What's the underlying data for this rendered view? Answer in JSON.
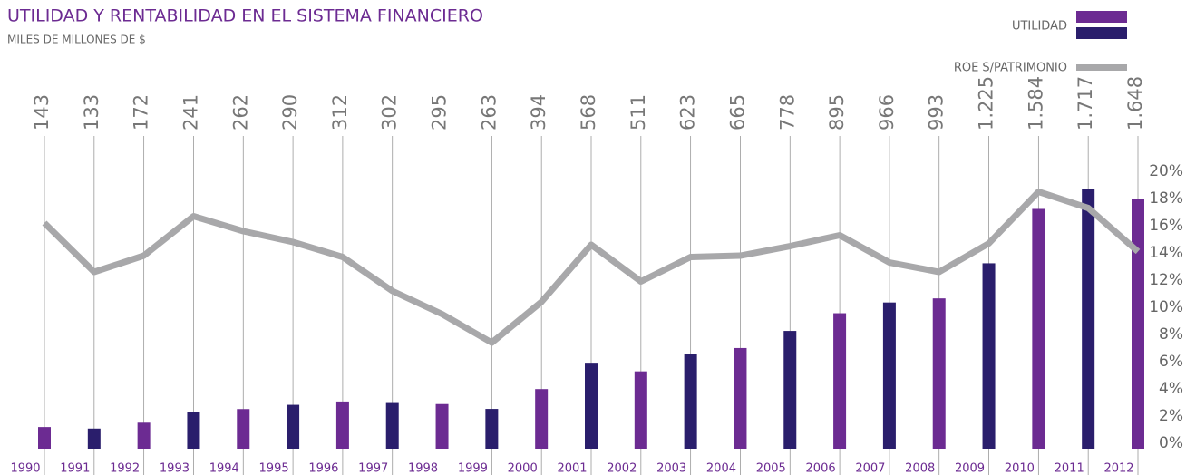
{
  "chart_data": {
    "type": "bar_line",
    "title": "UTILIDAD Y RENTABILIDAD EN EL SISTEMA FINANCIERO",
    "subtitle": "MILES DE MILLONES DE $",
    "categories": [
      "1990",
      "1991",
      "1992",
      "1993",
      "1994",
      "1995",
      "1996",
      "1997",
      "1998",
      "1999",
      "2000",
      "2001",
      "2002",
      "2003",
      "2004",
      "2005",
      "2006",
      "2007",
      "2008",
      "2009",
      "2010",
      "2011",
      "2012"
    ],
    "series": [
      {
        "name": "UTILIDAD",
        "type": "bar",
        "color": [
          "#6c2b92",
          "#2a1e6c"
        ],
        "values": [
          143,
          133,
          172,
          241,
          262,
          290,
          312,
          302,
          295,
          263,
          394,
          568,
          511,
          623,
          665,
          778,
          895,
          966,
          993,
          1225,
          1584,
          1717,
          1648
        ],
        "value_labels": [
          "143",
          "133",
          "172",
          "241",
          "262",
          "290",
          "312",
          "302",
          "295",
          "263",
          "394",
          "568",
          "511",
          "623",
          "665",
          "778",
          "895",
          "966",
          "993",
          "1.225",
          "1.584",
          "1.717",
          "1.648"
        ]
      },
      {
        "name": "ROE S/PATRIMONIO",
        "type": "line",
        "axis": "y2",
        "color": "#a8a8aa",
        "values": [
          16.2,
          12.6,
          13.8,
          16.7,
          15.6,
          14.8,
          13.7,
          11.2,
          9.5,
          7.4,
          10.4,
          14.6,
          11.9,
          13.7,
          13.8,
          14.5,
          15.3,
          13.3,
          12.6,
          14.7,
          18.5,
          17.3,
          14.1
        ]
      }
    ],
    "ylim": [
      0,
      2000
    ],
    "y2lim": [
      0,
      20
    ],
    "y2ticks": [
      {
        "value": 0,
        "label": "0%"
      },
      {
        "value": 2,
        "label": "2%"
      },
      {
        "value": 4,
        "label": "4%"
      },
      {
        "value": 6,
        "label": "6%"
      },
      {
        "value": 8,
        "label": "8%"
      },
      {
        "value": 10,
        "label": "10%"
      },
      {
        "value": 12,
        "label": "12%"
      },
      {
        "value": 14,
        "label": "14%"
      },
      {
        "value": 16,
        "label": "16%"
      },
      {
        "value": 18,
        "label": "18%"
      },
      {
        "value": 20,
        "label": "20%"
      }
    ]
  }
}
